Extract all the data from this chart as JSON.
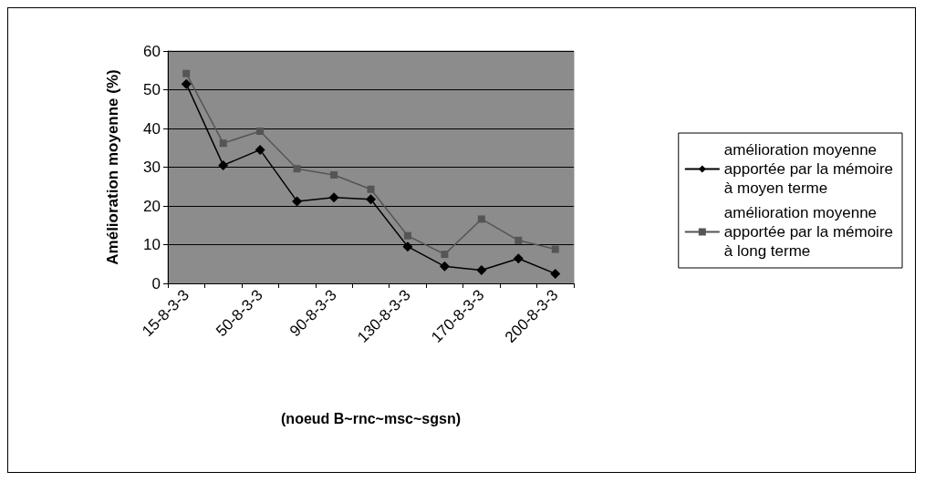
{
  "chart_data": {
    "type": "line",
    "xlabel": "(noeud B~rnc~msc~sgsn)",
    "ylabel": "Amélioration moyenne (%)",
    "categories": [
      "15-8-3-3",
      null,
      "50-8-3-3",
      null,
      "90-8-3-3",
      null,
      "130-8-3-3",
      null,
      "170-8-3-3",
      null,
      "200-8-3-3"
    ],
    "series": [
      {
        "name": "amélioration moyenne apportée par la mémoire à moyen terme",
        "color": "#000000",
        "marker": "diamond",
        "values": [
          51.5,
          30.5,
          34.5,
          21.2,
          22.2,
          21.7,
          9.5,
          4.4,
          3.4,
          6.4,
          2.5
        ]
      },
      {
        "name": "amélioration moyenne apportée par la mémoire à long terme",
        "color": "#555555",
        "marker": "square",
        "values": [
          54.2,
          36.2,
          39.3,
          29.6,
          28,
          24.3,
          12.3,
          7.5,
          16.6,
          11.1,
          8.8
        ]
      }
    ],
    "ylim": [
      0,
      60
    ],
    "yticks": [
      0,
      10,
      20,
      30,
      40,
      50,
      60
    ],
    "grid": "y",
    "legend": "right",
    "line_style": "solid"
  }
}
